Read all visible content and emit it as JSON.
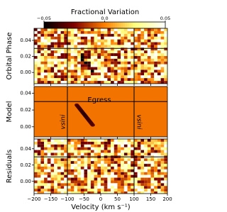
{
  "chart_data": {
    "type": "heatmap",
    "colorbar": {
      "title": "Fractional Variation",
      "lim": [
        -0.05,
        0.05
      ],
      "ticks": [
        {
          "value": -0.05,
          "label": "−0.05"
        },
        {
          "value": 0,
          "label": "0.0"
        },
        0.05
      ]
    },
    "xlabel": "Velocity (km s⁻¹)",
    "xlim": [
      -200,
      200
    ],
    "xticks": [
      {
        "value": -200,
        "label": "−200"
      },
      {
        "value": -150,
        "label": "−150"
      },
      {
        "value": -100,
        "label": "−100"
      },
      {
        "value": -50,
        "label": "−50"
      },
      0,
      50,
      100,
      150,
      200
    ],
    "vlines": [
      -100,
      100
    ],
    "hline": 0.03,
    "panels": [
      {
        "ylabel": "Orbital Phase",
        "ylim": [
          -0.014,
          0.055
        ],
        "yticks": [
          {
            "value": 0,
            "label": "0.00"
          },
          0.02,
          0.04
        ]
      },
      {
        "ylabel": "Model",
        "ylim": [
          -0.012,
          0.048
        ],
        "yticks": [
          {
            "value": 0,
            "label": "0.00"
          },
          0.02,
          0.04
        ]
      },
      {
        "ylabel": "Residuals",
        "ylim": [
          -0.015,
          0.052
        ],
        "yticks": [
          {
            "value": 0,
            "label": "0.00"
          },
          0.02,
          0.04
        ]
      }
    ],
    "annotations": [
      "Egress",
      "vsini",
      "vsini"
    ]
  }
}
